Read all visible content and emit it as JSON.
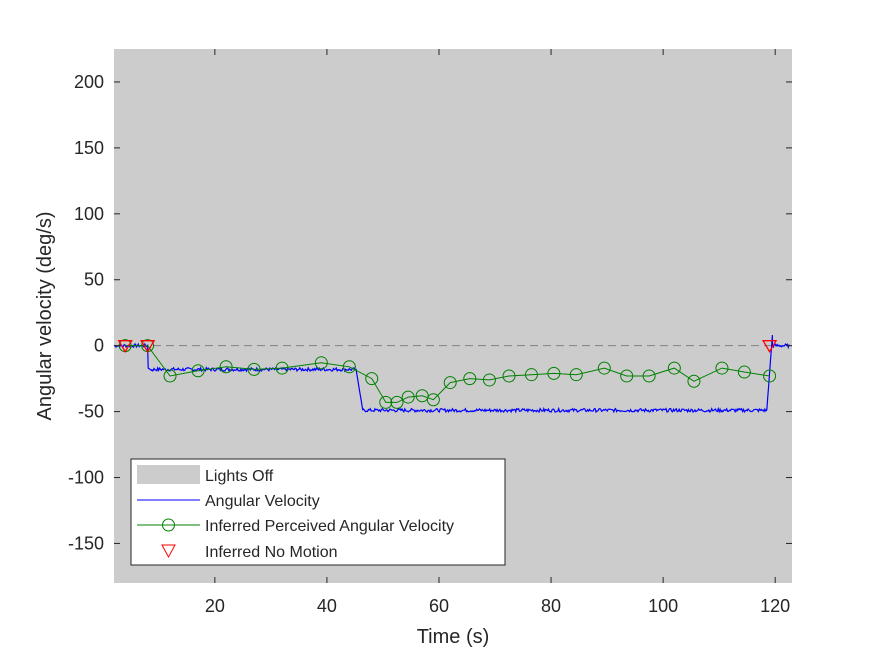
{
  "chart_data": {
    "type": "line",
    "xlabel": "Time (s)",
    "ylabel": "Angular velocity (deg/s)",
    "xlim": [
      2,
      123
    ],
    "ylim": [
      -180,
      225
    ],
    "xticks": [
      20,
      40,
      60,
      80,
      100,
      120
    ],
    "yticks": [
      -150,
      -100,
      -50,
      0,
      50,
      100,
      150,
      200
    ],
    "grid": false,
    "background_color": "#cccccc",
    "zero_line": {
      "y": 0,
      "style": "dashed",
      "color": "#808080"
    },
    "lights_off": {
      "x_range": [
        2,
        123
      ],
      "color": "#cccccc"
    },
    "legend": {
      "placement": "bottom-left",
      "entries": [
        {
          "label": "Lights Off",
          "kind": "patch",
          "color": "#cccccc"
        },
        {
          "label": "Angular Velocity",
          "kind": "line",
          "color": "#0000ff"
        },
        {
          "label": "Inferred Perceived Angular Velocity",
          "kind": "line-circle",
          "color": "#008000"
        },
        {
          "label": "Inferred No Motion",
          "kind": "triangle",
          "color": "#ff0000"
        }
      ]
    },
    "series": [
      {
        "name": "Angular Velocity",
        "color": "#0000ff",
        "segments": [
          {
            "x": [
              2,
              8
            ],
            "y": [
              0,
              0
            ]
          },
          {
            "x": [
              8.1,
              8.8
            ],
            "y": [
              -17,
              -19
            ]
          },
          {
            "x": [
              8.8,
              45
            ],
            "y": [
              -18,
              -18
            ]
          },
          {
            "x": [
              45.2,
              46.4
            ],
            "y": [
              -18,
              -49
            ]
          },
          {
            "x": [
              46.4,
              118.5
            ],
            "y": [
              -49,
              -49
            ]
          },
          {
            "x": [
              118.5,
              119.5
            ],
            "y": [
              -49,
              8
            ]
          },
          {
            "x": [
              119.5,
              122.5
            ],
            "y": [
              0,
              0
            ]
          }
        ]
      },
      {
        "name": "Inferred Perceived Angular Velocity",
        "color": "#008000",
        "x": [
          4,
          8,
          12,
          17,
          22,
          27,
          32,
          39,
          44,
          48,
          50.5,
          52.5,
          54.5,
          57,
          59,
          62,
          65.5,
          69,
          72.5,
          76.5,
          80.5,
          84.5,
          89.5,
          93.5,
          97.5,
          102,
          105.5,
          110.5,
          114.5,
          119
        ],
        "y": [
          0,
          0,
          -23,
          -19,
          -16,
          -18,
          -17,
          -13,
          -16,
          -25,
          -43,
          -43,
          -39,
          -38,
          -41,
          -28,
          -25,
          -26,
          -23,
          -22,
          -21,
          -22,
          -17,
          -23,
          -23,
          -17,
          -27,
          -17,
          -20,
          -23
        ]
      },
      {
        "name": "Inferred No Motion",
        "color": "#ff0000",
        "x": [
          4,
          8,
          119
        ],
        "y": [
          0,
          0,
          0
        ]
      }
    ]
  }
}
